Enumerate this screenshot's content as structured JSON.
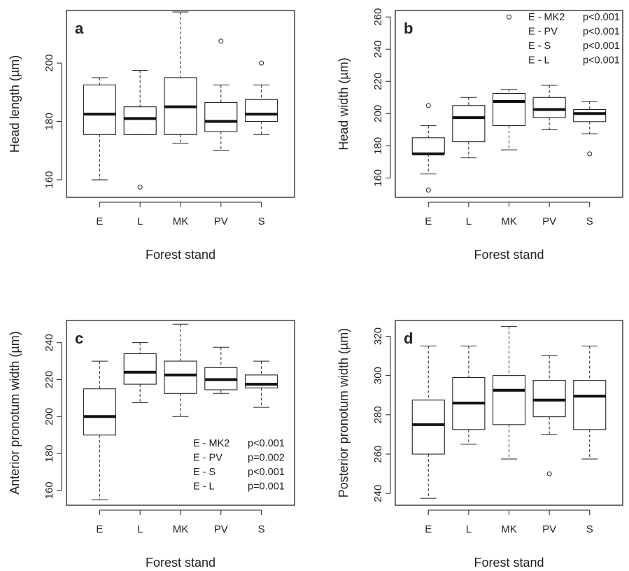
{
  "chart_data": [
    {
      "type": "boxplot",
      "panel_label": "a",
      "xlabel": "Forest stand",
      "ylabel": "Head length (µm)",
      "categories": [
        "E",
        "L",
        "MK",
        "PV",
        "S"
      ],
      "yticks": [
        160,
        180,
        200
      ],
      "ylim": [
        154,
        218
      ],
      "boxes": [
        {
          "whisker_low": 160,
          "q1": 175.5,
          "median": 182.5,
          "q3": 192.5,
          "whisker_high": 195,
          "outliers": []
        },
        {
          "whisker_low": 175.5,
          "q1": 175.5,
          "median": 181,
          "q3": 185,
          "whisker_high": 197.5,
          "outliers": [
            157.5
          ]
        },
        {
          "whisker_low": 172.5,
          "q1": 175.5,
          "median": 185,
          "q3": 195,
          "whisker_high": 217.5,
          "outliers": []
        },
        {
          "whisker_low": 170,
          "q1": 176.5,
          "median": 180,
          "q3": 186.5,
          "whisker_high": 192.5,
          "outliers": [
            207.5
          ]
        },
        {
          "whisker_low": 175.5,
          "q1": 180,
          "median": 182.5,
          "q3": 187.5,
          "whisker_high": 192.5,
          "outliers": [
            200
          ]
        }
      ],
      "annotations": []
    },
    {
      "type": "boxplot",
      "panel_label": "b",
      "xlabel": "Forest stand",
      "ylabel": "Head width (µm)",
      "categories": [
        "E",
        "L",
        "MK",
        "PV",
        "S"
      ],
      "yticks": [
        160,
        180,
        200,
        220,
        240,
        260
      ],
      "ylim": [
        148,
        264
      ],
      "boxes": [
        {
          "whisker_low": 162.5,
          "q1": 175,
          "median": 175,
          "q3": 185,
          "whisker_high": 192.5,
          "outliers": [
            205,
            152.5
          ]
        },
        {
          "whisker_low": 172.5,
          "q1": 182.5,
          "median": 197.5,
          "q3": 205,
          "whisker_high": 210,
          "outliers": []
        },
        {
          "whisker_low": 177.5,
          "q1": 192.5,
          "median": 207.5,
          "q3": 212.5,
          "whisker_high": 215,
          "outliers": [
            260
          ]
        },
        {
          "whisker_low": 190,
          "q1": 197.5,
          "median": 202.5,
          "q3": 210,
          "whisker_high": 217.5,
          "outliers": []
        },
        {
          "whisker_low": 187.5,
          "q1": 195,
          "median": 200,
          "q3": 202.5,
          "whisker_high": 207.5,
          "outliers": [
            175
          ]
        }
      ],
      "annotations": [
        {
          "pair": "E - MK2",
          "p": "p<0.001"
        },
        {
          "pair": "E - PV",
          "p": "p<0.001"
        },
        {
          "pair": "E - S",
          "p": "p<0.001"
        },
        {
          "pair": "E - L",
          "p": "p<0.001"
        }
      ]
    },
    {
      "type": "boxplot",
      "panel_label": "c",
      "xlabel": "Forest stand",
      "ylabel": "Anterior pronotum width (µm)",
      "categories": [
        "E",
        "L",
        "MK",
        "PV",
        "S"
      ],
      "yticks": [
        160,
        180,
        200,
        220,
        240
      ],
      "ylim": [
        152,
        252
      ],
      "boxes": [
        {
          "whisker_low": 155,
          "q1": 190,
          "median": 200,
          "q3": 215,
          "whisker_high": 230,
          "outliers": []
        },
        {
          "whisker_low": 207.5,
          "q1": 217.5,
          "median": 224,
          "q3": 234,
          "whisker_high": 240,
          "outliers": []
        },
        {
          "whisker_low": 200,
          "q1": 212.5,
          "median": 222.5,
          "q3": 230,
          "whisker_high": 250,
          "outliers": []
        },
        {
          "whisker_low": 212.5,
          "q1": 214.5,
          "median": 220,
          "q3": 226.5,
          "whisker_high": 237.5,
          "outliers": []
        },
        {
          "whisker_low": 205,
          "q1": 215.5,
          "median": 217.5,
          "q3": 222.5,
          "whisker_high": 230,
          "outliers": []
        }
      ],
      "annotations": [
        {
          "pair": "E - MK2",
          "p": "p<0.001"
        },
        {
          "pair": "E - PV",
          "p": "p=0.002"
        },
        {
          "pair": "E - S",
          "p": "p<0.001"
        },
        {
          "pair": "E - L",
          "p": "p=0.001"
        }
      ]
    },
    {
      "type": "boxplot",
      "panel_label": "d",
      "xlabel": "Forest stand",
      "ylabel": "Posterior pronotum width (µm)",
      "categories": [
        "E",
        "L",
        "MK",
        "PV",
        "S"
      ],
      "yticks": [
        240,
        260,
        280,
        300,
        320
      ],
      "ylim": [
        234,
        328
      ],
      "boxes": [
        {
          "whisker_low": 237.5,
          "q1": 260,
          "median": 275,
          "q3": 287.5,
          "whisker_high": 315,
          "outliers": []
        },
        {
          "whisker_low": 265,
          "q1": 272.5,
          "median": 286,
          "q3": 299,
          "whisker_high": 315,
          "outliers": []
        },
        {
          "whisker_low": 257.5,
          "q1": 275,
          "median": 292.5,
          "q3": 300,
          "whisker_high": 325,
          "outliers": []
        },
        {
          "whisker_low": 270,
          "q1": 279,
          "median": 287.5,
          "q3": 297.5,
          "whisker_high": 310,
          "outliers": [
            250
          ]
        },
        {
          "whisker_low": 257.5,
          "q1": 272.5,
          "median": 289.5,
          "q3": 297.5,
          "whisker_high": 315,
          "outliers": []
        }
      ],
      "annotations": []
    }
  ]
}
